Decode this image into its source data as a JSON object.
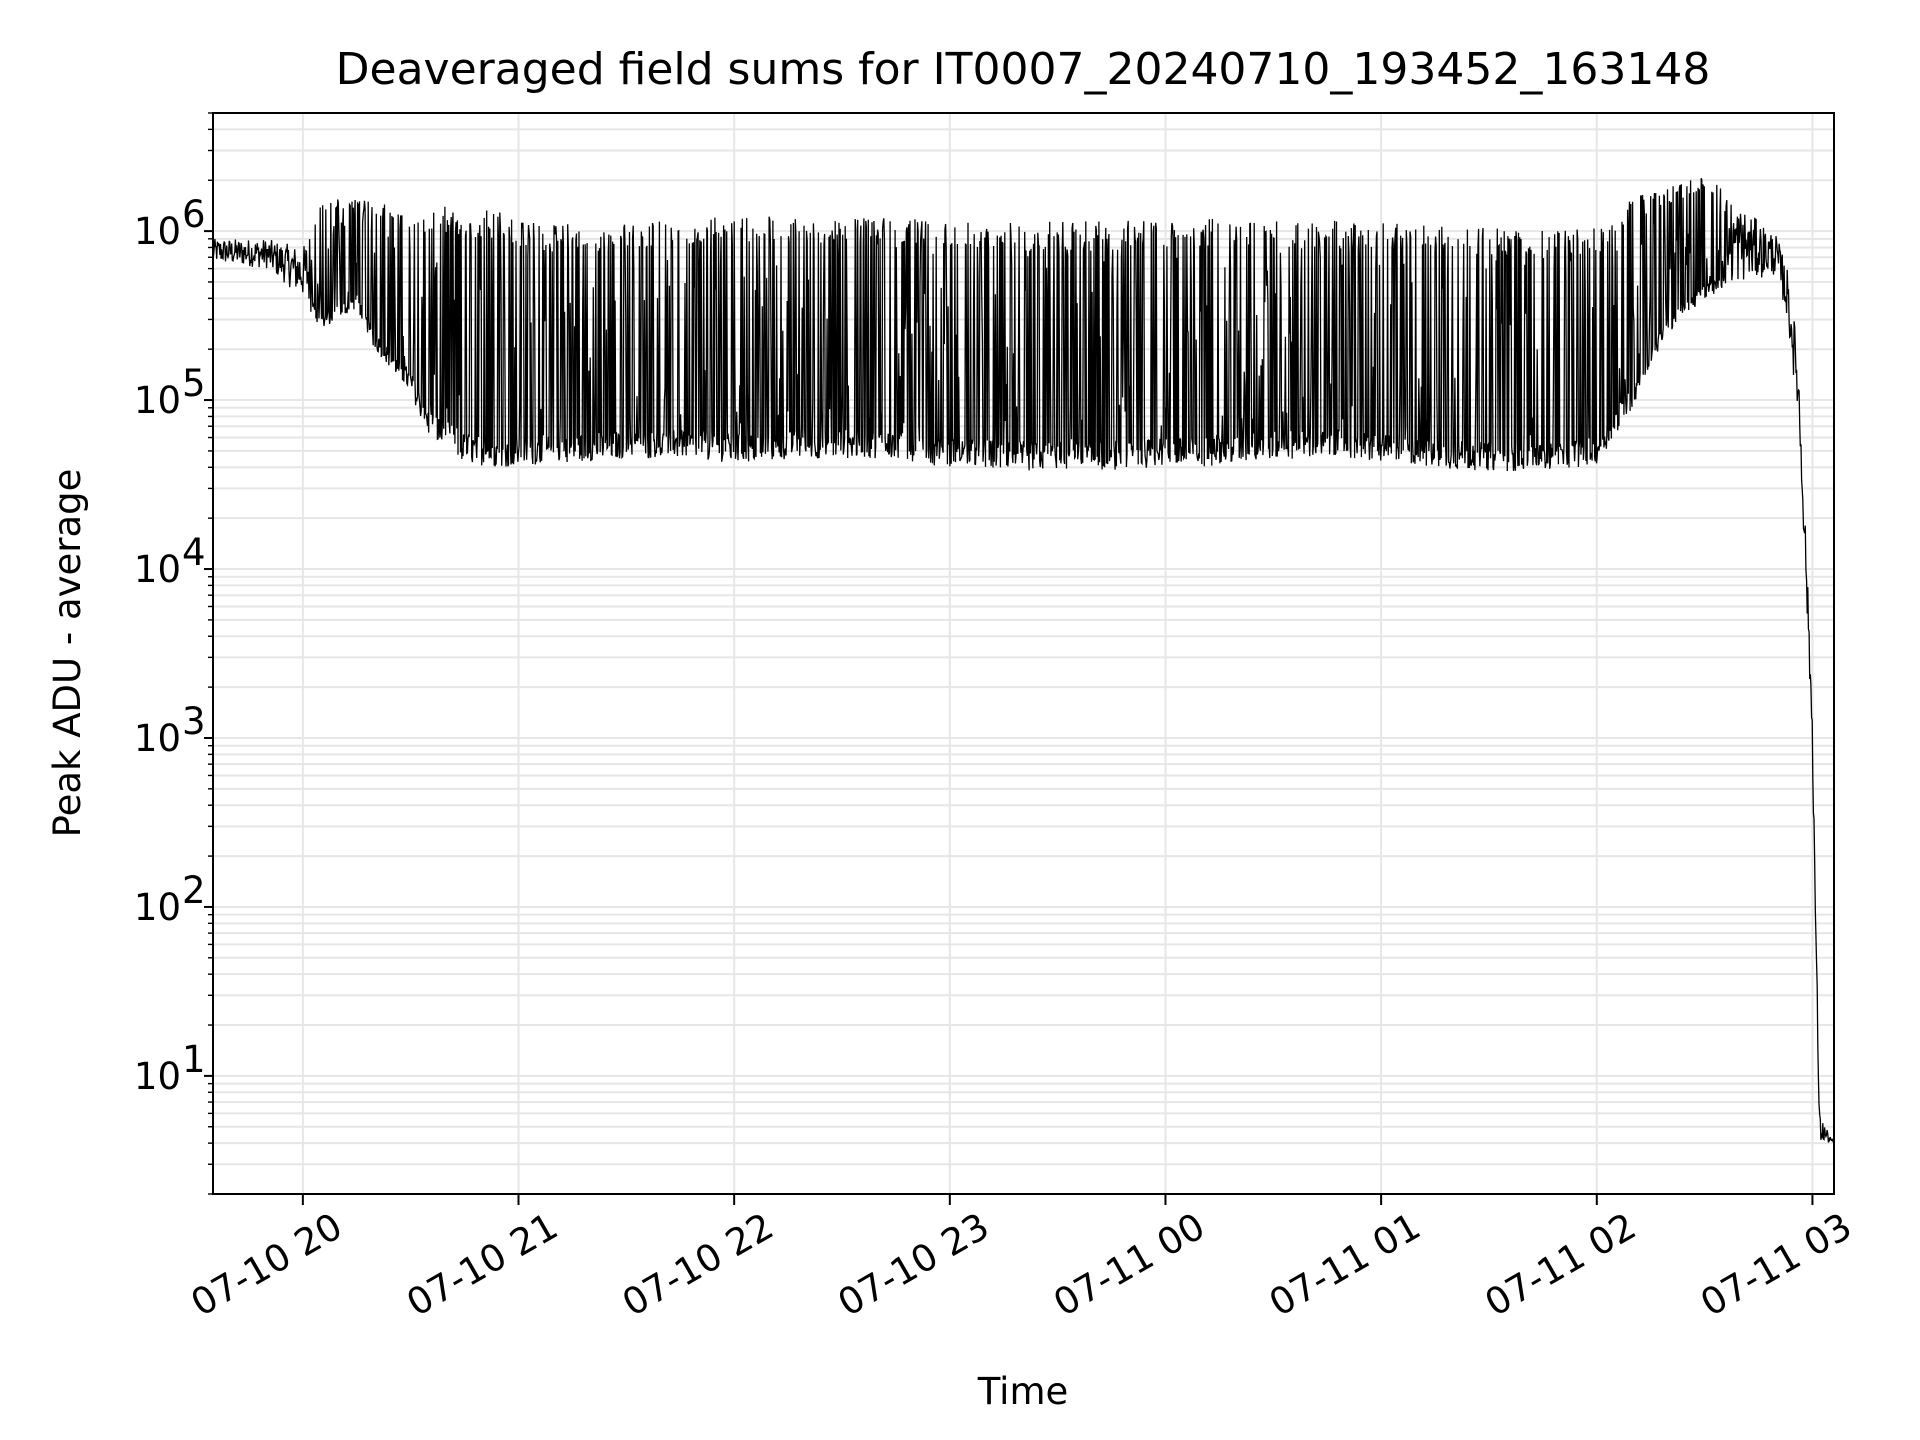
{
  "chart_data": {
    "type": "line",
    "title": "Deaveraged field sums for IT0007_20240710_193452_163148",
    "xlabel": "Time",
    "ylabel": "Peak ADU - average",
    "yscale": "log",
    "ylim": [
      2,
      5000000
    ],
    "xlim": [
      "2024-07-10 19:35",
      "2024-07-11 03:06"
    ],
    "grid": true,
    "x_ticks": [
      {
        "t": "2024-07-10 20:00",
        "label": "07-10 20"
      },
      {
        "t": "2024-07-10 21:00",
        "label": "07-10 21"
      },
      {
        "t": "2024-07-10 22:00",
        "label": "07-10 22"
      },
      {
        "t": "2024-07-10 23:00",
        "label": "07-10 23"
      },
      {
        "t": "2024-07-11 00:00",
        "label": "07-11 00"
      },
      {
        "t": "2024-07-11 01:00",
        "label": "07-11 01"
      },
      {
        "t": "2024-07-11 02:00",
        "label": "07-11 02"
      },
      {
        "t": "2024-07-11 03:00",
        "label": "07-11 03"
      }
    ],
    "y_ticks": [
      {
        "value": 10,
        "base": "10",
        "exp": "1"
      },
      {
        "value": 100,
        "base": "10",
        "exp": "2"
      },
      {
        "value": 1000,
        "base": "10",
        "exp": "3"
      },
      {
        "value": 10000,
        "base": "10",
        "exp": "4"
      },
      {
        "value": 100000,
        "base": "10",
        "exp": "5"
      },
      {
        "value": 1000000,
        "base": "10",
        "exp": "6"
      }
    ],
    "series": [
      {
        "color": "#000000",
        "envelope": {
          "x": [
            "2024-07-10 19:35",
            "2024-07-10 19:50",
            "2024-07-10 20:00",
            "2024-07-10 20:05",
            "2024-07-10 20:15",
            "2024-07-10 20:20",
            "2024-07-10 20:30",
            "2024-07-10 20:35",
            "2024-07-10 20:45",
            "2024-07-10 20:55",
            "2024-07-10 21:10",
            "2024-07-10 21:30",
            "2024-07-10 21:50",
            "2024-07-10 22:00",
            "2024-07-10 22:20",
            "2024-07-10 22:40",
            "2024-07-10 23:00",
            "2024-07-10 23:20",
            "2024-07-10 23:40",
            "2024-07-11 00:00",
            "2024-07-11 00:10",
            "2024-07-11 00:30",
            "2024-07-11 00:50",
            "2024-07-11 01:10",
            "2024-07-11 01:30",
            "2024-07-11 01:50",
            "2024-07-11 02:00",
            "2024-07-11 02:10",
            "2024-07-11 02:20",
            "2024-07-11 02:30",
            "2024-07-11 02:40",
            "2024-07-11 02:50",
            "2024-07-11 02:53",
            "2024-07-11 02:56",
            "2024-07-11 02:58",
            "2024-07-11 03:00",
            "2024-07-11 03:01",
            "2024-07-11 03:02",
            "2024-07-11 03:06"
          ],
          "low": [
            650000,
            600000,
            400000,
            260000,
            350000,
            200000,
            110000,
            60000,
            42000,
            40000,
            42000,
            45000,
            45000,
            42000,
            45000,
            45000,
            40000,
            38000,
            38000,
            40000,
            40000,
            45000,
            45000,
            40000,
            38000,
            38000,
            42000,
            90000,
            250000,
            400000,
            500000,
            550000,
            300000,
            80000,
            10000,
            800,
            40,
            4,
            4
          ],
          "high": [
            900000,
            900000,
            800000,
            1500000,
            1600000,
            1500000,
            1300000,
            1400000,
            1400000,
            1300000,
            1100000,
            1100000,
            1200000,
            1250000,
            1250000,
            1200000,
            1150000,
            1150000,
            1150000,
            1150000,
            1200000,
            1150000,
            1150000,
            1100000,
            1050000,
            1000000,
            1050000,
            1600000,
            1800000,
            2200000,
            1400000,
            950000,
            600000,
            200000,
            20000,
            1500,
            80,
            6,
            4
          ]
        }
      }
    ]
  }
}
